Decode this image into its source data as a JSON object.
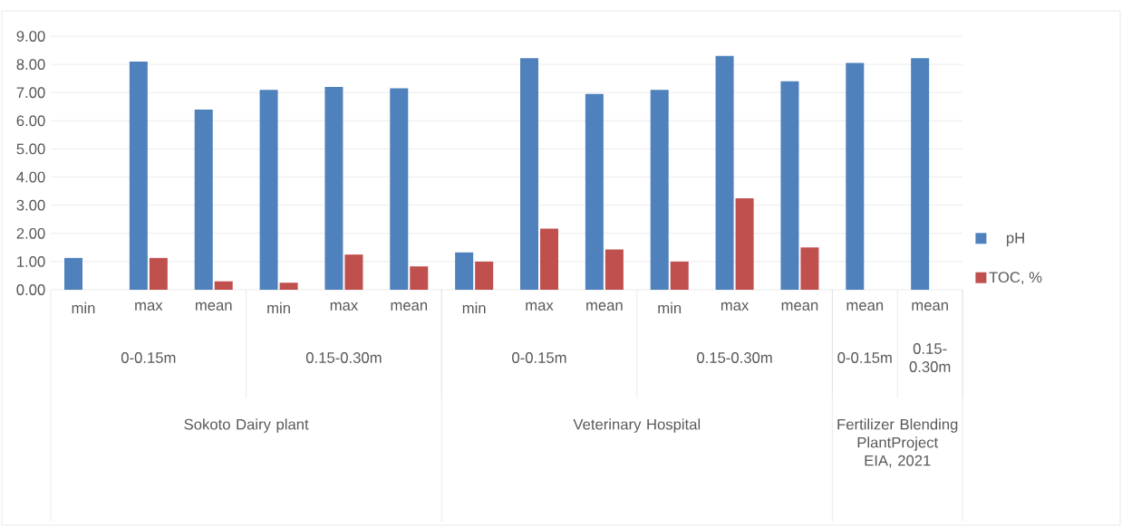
{
  "chart_data": {
    "type": "bar",
    "categories": [
      "min",
      "max",
      "mean",
      "min",
      "max",
      "mean",
      "min",
      "max",
      "mean",
      "min",
      "max",
      "mean",
      "mean",
      "mean"
    ],
    "series": [
      {
        "name": "pH",
        "color": "#4f81bd",
        "values": [
          1.13,
          8.1,
          6.4,
          7.1,
          7.2,
          7.15,
          1.33,
          8.22,
          6.95,
          7.1,
          8.3,
          7.4,
          8.05,
          8.22
        ]
      },
      {
        "name": "TOC, %",
        "color": "#c0504d",
        "values": [
          null,
          1.13,
          0.3,
          0.25,
          1.25,
          0.83,
          1.0,
          2.17,
          1.43,
          1.0,
          3.25,
          1.5,
          null,
          null
        ]
      }
    ],
    "ylim": [
      0,
      9
    ],
    "yticks": [
      {
        "value": 0,
        "label": "0.00"
      },
      {
        "value": 1,
        "label": "1.00"
      },
      {
        "value": 2,
        "label": "2.00"
      },
      {
        "value": 3,
        "label": "3.00"
      },
      {
        "value": 4,
        "label": "4.00"
      },
      {
        "value": 5,
        "label": "5.00"
      },
      {
        "value": 6,
        "label": "6.00"
      },
      {
        "value": 7,
        "label": "7.00"
      },
      {
        "value": 8,
        "label": "8.00"
      },
      {
        "value": 9,
        "label": "9.00"
      }
    ],
    "grid": "y",
    "legend": "right",
    "annotations": [
      "0-0.15m",
      "0.15-0.30m",
      "0-0.15m",
      "0.15-0.30m",
      "0-0.15m",
      "0.15-0.30m",
      "Sokoto Dairy plant",
      "Veterinary Hospital",
      "Fertilizer Blending PlantProject EIA, 2021"
    ]
  }
}
